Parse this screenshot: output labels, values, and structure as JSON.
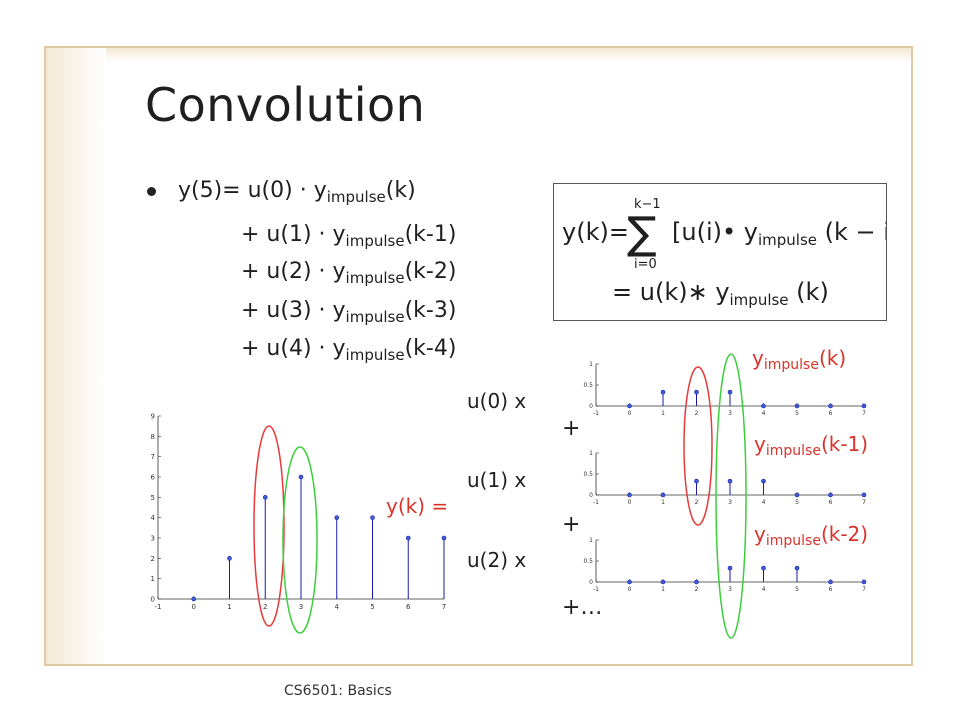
{
  "slide": {
    "title": "Convolution",
    "footer": "CS6501: Basics"
  },
  "bullets": {
    "line1": {
      "lhs": "y(5)= u(0)  · y",
      "sub": "impulse",
      "arg": "(k)"
    },
    "line2": {
      "lhs": "+ u(1)  · y",
      "sub": "impulse",
      "arg": "(k-1)"
    },
    "line3": {
      "lhs": "+ u(2)  · y",
      "sub": "impulse",
      "arg": "(k-2)"
    },
    "line4": {
      "lhs": "+ u(3)  · y",
      "sub": "impulse",
      "arg": "(k-3)"
    },
    "line5": {
      "lhs": "+ u(4)  · y",
      "sub": "impulse",
      "arg": "(k-4)"
    }
  },
  "formula": {
    "lhs": "y(k)=",
    "sum_upper": "k−1",
    "sum_lower": "i=0",
    "sigma": "∑",
    "body": "[u(i)• y",
    "body_sub": "impulse",
    "body_arg": " (k − i)]",
    "line2": "= u(k)∗ y",
    "line2_sub": "impulse",
    "line2_arg": " (k)"
  },
  "labels": {
    "yk_eq": "y(k) =",
    "u0x": "u(0)  x",
    "u1x": "u(1)  x",
    "u2x": "u(2)  x",
    "plus1": "+",
    "plus2": "+",
    "plus3": "+…",
    "yimp_k": {
      "base": "y",
      "sub": "impulse",
      "arg": "(k)"
    },
    "yimp_k1": {
      "base": "y",
      "sub": "impulse",
      "arg": "(k-1)"
    },
    "yimp_k2": {
      "base": "y",
      "sub": "impulse",
      "arg": "(k-2)"
    }
  },
  "colors": {
    "stem": "#1a1aaa",
    "marker": "#3b5fd6",
    "red_ellipse": "#e53b3b",
    "green_ellipse": "#3ccf3c",
    "red_text": "#d9342b",
    "frame": "#e0c9a6"
  },
  "chart_data": [
    {
      "type": "scatter",
      "name": "y(k)",
      "x": [
        0,
        1,
        2,
        3,
        4,
        5,
        6,
        7
      ],
      "values": [
        0,
        2,
        5,
        6,
        4,
        4,
        3,
        3
      ],
      "xlim": [
        -1,
        7
      ],
      "ylim": [
        0,
        9
      ],
      "xticks": [
        "-1",
        "0",
        "1",
        "2",
        "3",
        "4",
        "5",
        "6",
        "7"
      ],
      "yticks": [
        "0",
        "1",
        "2",
        "3",
        "4",
        "5",
        "6",
        "7",
        "8",
        "9"
      ]
    },
    {
      "type": "scatter",
      "name": "u(0) · y_impulse(k)",
      "x": [
        0,
        1,
        2,
        3,
        4,
        5,
        6,
        7
      ],
      "values": [
        0,
        0.33,
        0.33,
        0.33,
        0,
        0,
        0,
        0
      ],
      "xlim": [
        -1,
        7
      ],
      "ylim": [
        0,
        1
      ],
      "xticks": [
        "-1",
        "0",
        "1",
        "2",
        "3",
        "4",
        "5",
        "6",
        "7"
      ],
      "yticks": [
        "0",
        "0.5",
        "1"
      ]
    },
    {
      "type": "scatter",
      "name": "u(1) · y_impulse(k-1)",
      "x": [
        0,
        1,
        2,
        3,
        4,
        5,
        6,
        7
      ],
      "values": [
        0,
        0,
        0.33,
        0.33,
        0.33,
        0,
        0,
        0
      ],
      "xlim": [
        -1,
        7
      ],
      "ylim": [
        0,
        1
      ],
      "xticks": [
        "-1",
        "0",
        "1",
        "2",
        "3",
        "4",
        "5",
        "6",
        "7"
      ],
      "yticks": [
        "0",
        "0.5",
        "1"
      ]
    },
    {
      "type": "scatter",
      "name": "u(2) · y_impulse(k-2)",
      "x": [
        0,
        1,
        2,
        3,
        4,
        5,
        6,
        7
      ],
      "values": [
        0,
        0,
        0,
        0.33,
        0.33,
        0.33,
        0,
        0
      ],
      "xlim": [
        -1,
        7
      ],
      "ylim": [
        0,
        1
      ],
      "xticks": [
        "-1",
        "0",
        "1",
        "2",
        "3",
        "4",
        "5",
        "6",
        "7"
      ],
      "yticks": [
        "0",
        "0.5",
        "1"
      ]
    }
  ]
}
